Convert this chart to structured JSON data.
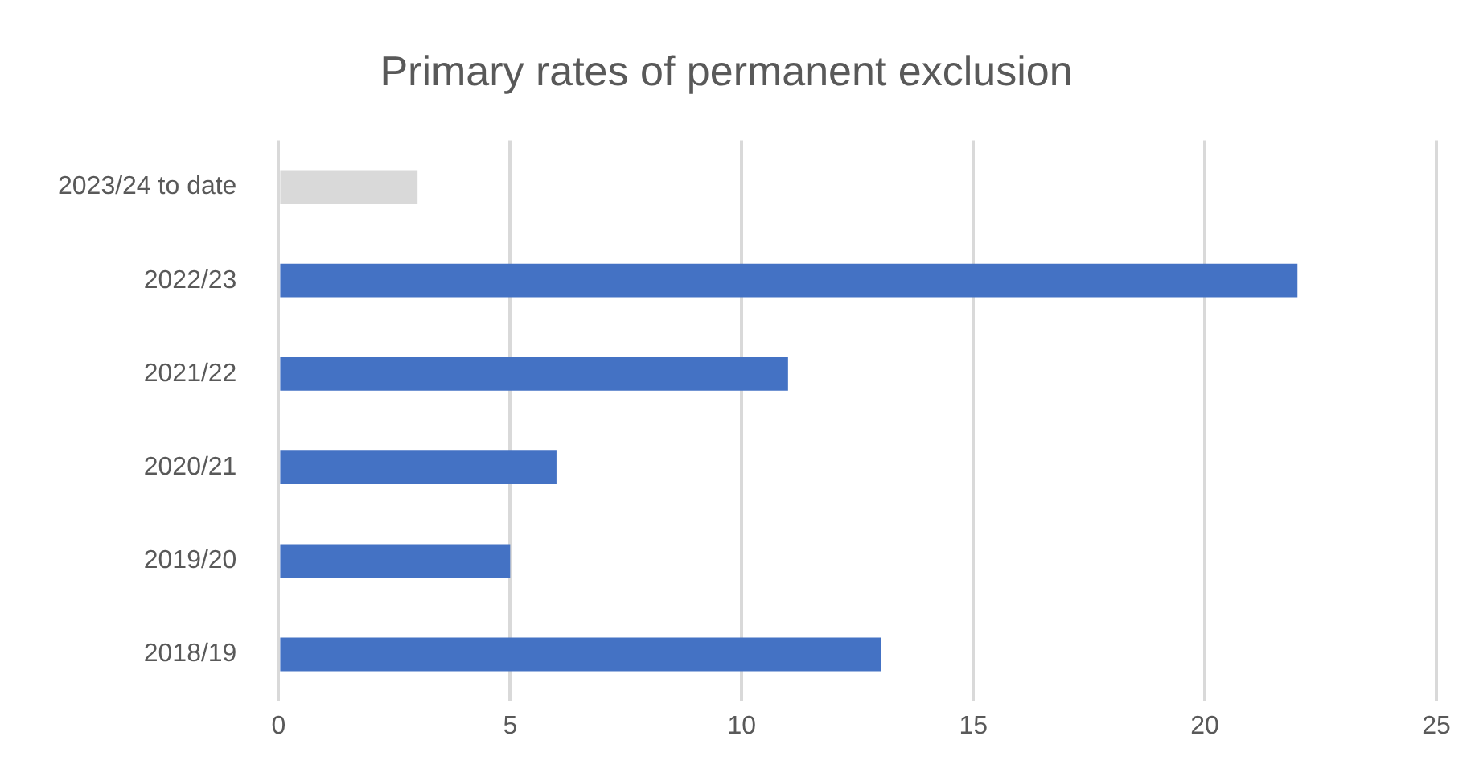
{
  "chart_data": {
    "type": "bar",
    "orientation": "horizontal",
    "title": "Primary rates of permanent exclusion",
    "categories": [
      "2023/24 to date",
      "2022/23",
      "2021/22",
      "2020/21",
      "2019/20",
      "2018/19"
    ],
    "values": [
      3,
      22,
      11,
      6,
      5,
      13
    ],
    "colors": [
      "#d9d9d9",
      "#4472c4",
      "#4472c4",
      "#4472c4",
      "#4472c4",
      "#4472c4"
    ],
    "xlim": [
      0,
      25
    ],
    "xticks": [
      0,
      5,
      10,
      15,
      20,
      25
    ],
    "grid": "x",
    "legend": false
  }
}
